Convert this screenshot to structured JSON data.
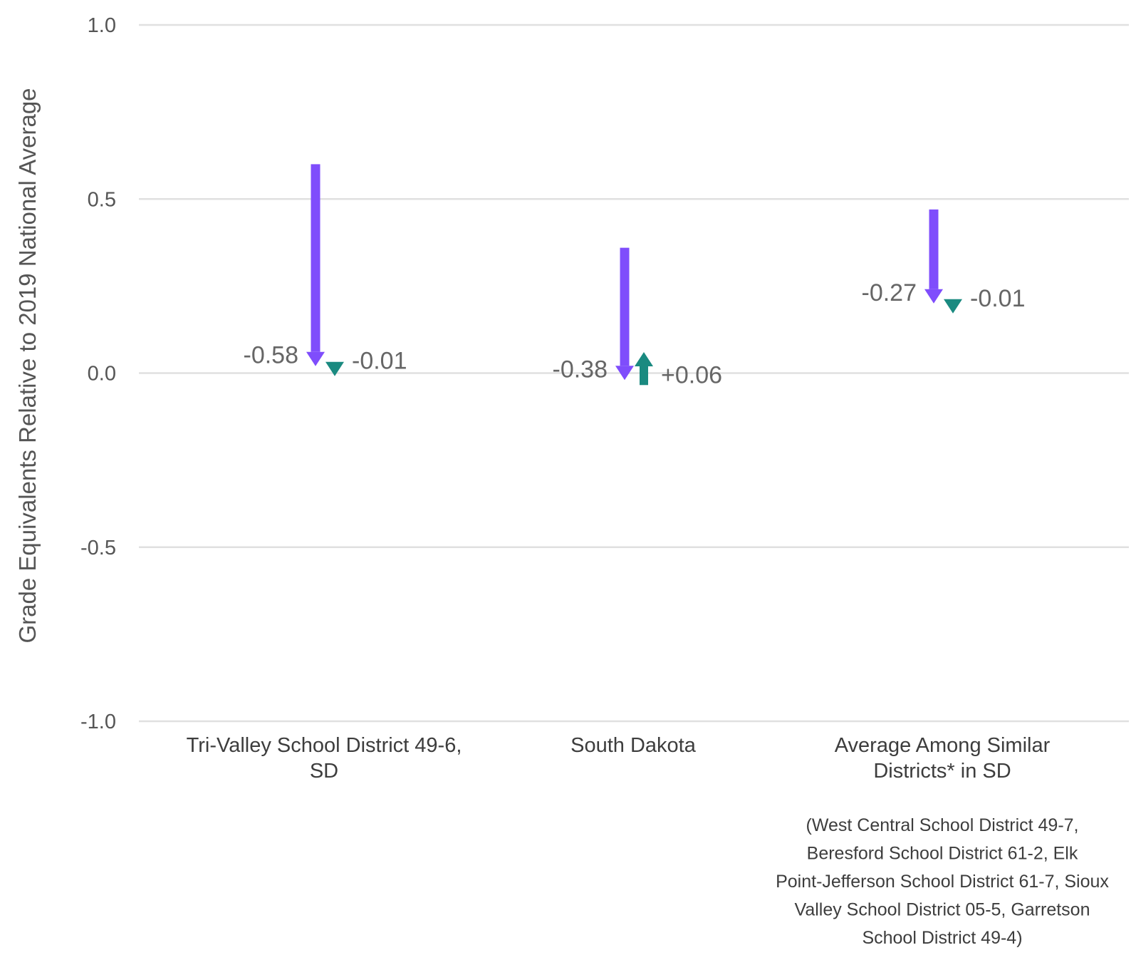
{
  "chart_data": {
    "type": "arrow",
    "ylabel": "Grade Equivalents Relative to 2019 National Average",
    "ylim": [
      -1.0,
      1.0
    ],
    "yticks": [
      "1.0",
      "0.5",
      "0.0",
      "-0.5",
      "-1.0"
    ],
    "yticks_values": [
      1.0,
      0.5,
      0.0,
      -0.5,
      -1.0
    ],
    "grid": true,
    "colors": {
      "first_change": "#7f4dfc",
      "second_change": "#1a8a80",
      "grid": "#e0e0e0"
    },
    "categories": [
      {
        "label_lines": [
          "Tri-Valley School District 49-6,",
          "SD"
        ],
        "note_lines": []
      },
      {
        "label_lines": [
          "South Dakota"
        ],
        "note_lines": []
      },
      {
        "label_lines": [
          "Average Among Similar",
          "Districts* in SD"
        ],
        "note_lines": [
          "(West Central School District 49-7,",
          "Beresford School District 61-2, Elk",
          "Point-Jefferson School District 61-7, Sioux",
          "Valley School District 05-5, Garretson",
          "School District 49-4)"
        ]
      }
    ],
    "series": [
      {
        "start": 0.6,
        "end": 0.02,
        "change": "-0.58",
        "second_start": 0.02,
        "second_end": 0.01,
        "second_change": "-0.01"
      },
      {
        "start": 0.36,
        "end": -0.02,
        "change": "-0.38",
        "second_start": -0.02,
        "second_end": 0.04,
        "second_change": "+0.06"
      },
      {
        "start": 0.47,
        "end": 0.2,
        "change": "-0.27",
        "second_start": 0.2,
        "second_end": 0.19,
        "second_change": "-0.01"
      }
    ]
  }
}
